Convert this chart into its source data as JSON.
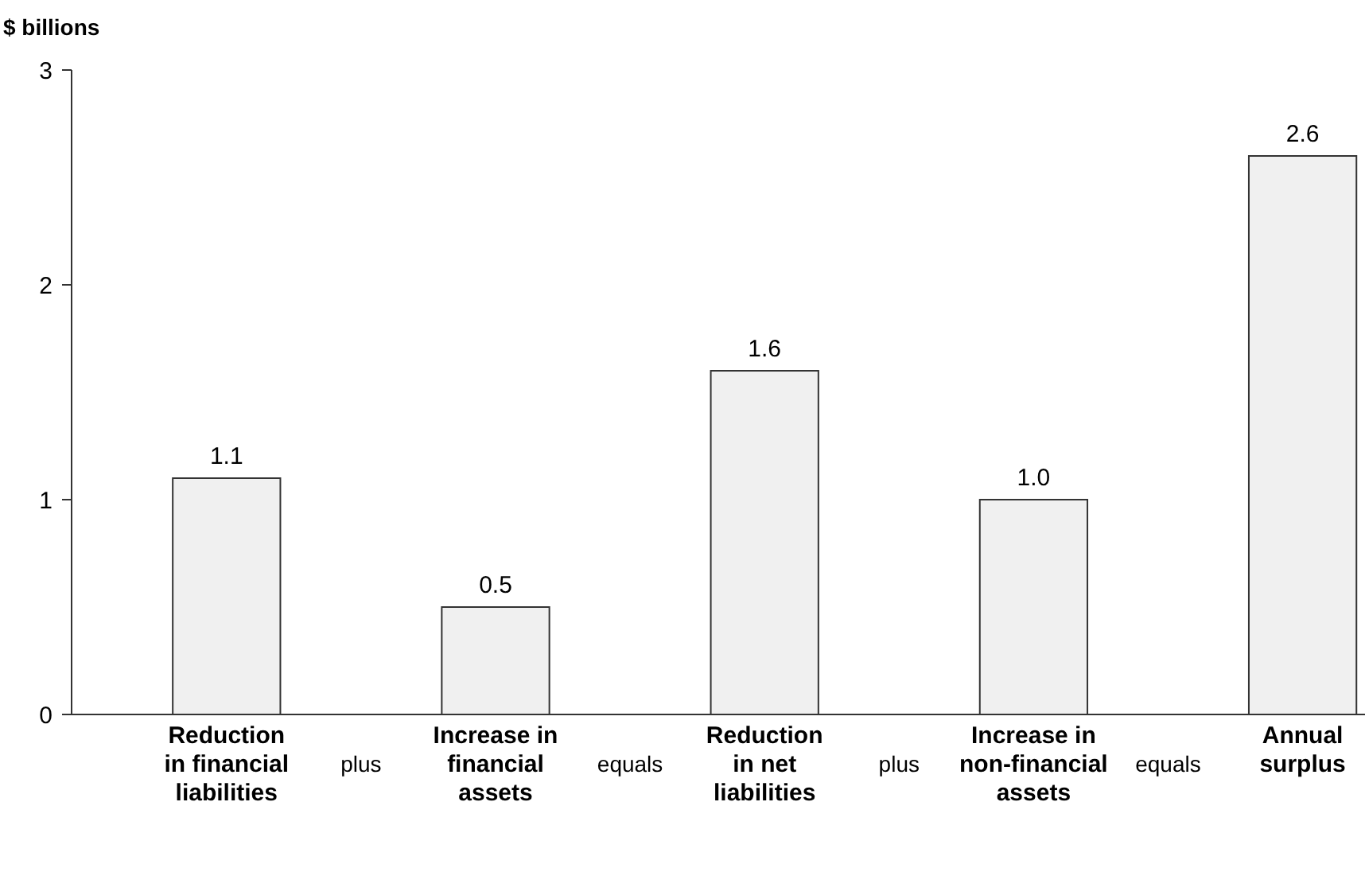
{
  "chart_data": {
    "type": "bar",
    "ylabel": "$ billions",
    "categories": [
      "Reduction\nin financial\nliabilities",
      "Increase in\nfinancial\nassets",
      "Reduction\nin net\nliabilities",
      "Increase in\nnon-financial\nassets",
      "Annual\nsurplus"
    ],
    "values": [
      1.1,
      0.5,
      1.6,
      1.0,
      2.6
    ],
    "value_labels": [
      "1.1",
      "0.5",
      "1.6",
      "1.0",
      "2.6"
    ],
    "color": "#f0f0f0",
    "ylim": [
      0,
      3
    ],
    "yticks": [
      0,
      1,
      2,
      3
    ],
    "grid": false,
    "annotations": [
      "plus",
      "equals",
      "plus",
      "equals"
    ]
  }
}
